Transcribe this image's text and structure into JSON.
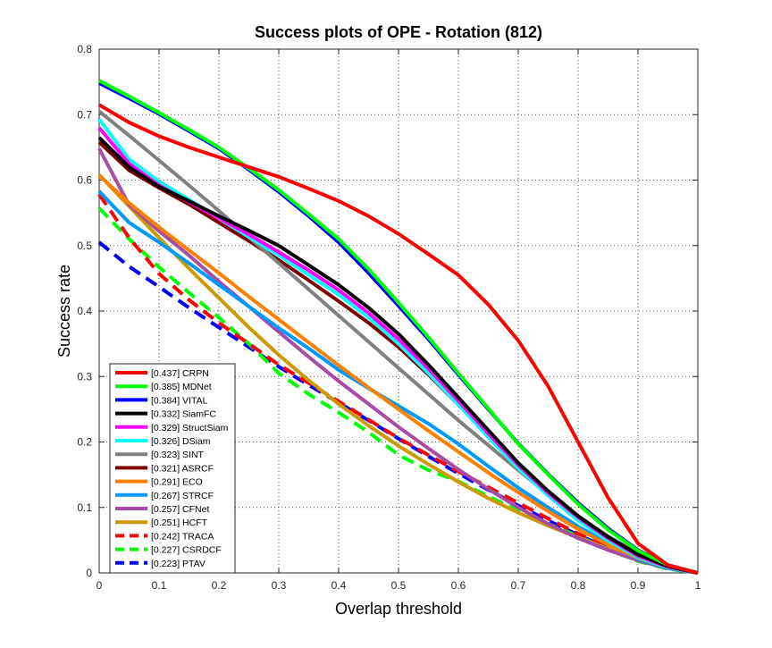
{
  "chart_data": {
    "type": "line",
    "title": "Success plots of OPE - Rotation (812)",
    "xlabel": "Overlap threshold",
    "ylabel": "Success rate",
    "xlim": [
      0,
      1
    ],
    "ylim": [
      0,
      0.8
    ],
    "xticks": [
      "0",
      "0.1",
      "0.2",
      "0.3",
      "0.4",
      "0.5",
      "0.6",
      "0.7",
      "0.8",
      "0.9",
      "1"
    ],
    "yticks": [
      "0",
      "0.1",
      "0.2",
      "0.3",
      "0.4",
      "0.5",
      "0.6",
      "0.7",
      "0.8"
    ],
    "grid": true,
    "legend_position": "bottom-left",
    "x": [
      0,
      0.05,
      0.1,
      0.15,
      0.2,
      0.25,
      0.3,
      0.35,
      0.4,
      0.45,
      0.5,
      0.55,
      0.6,
      0.65,
      0.7,
      0.75,
      0.8,
      0.85,
      0.9,
      0.95,
      1.0
    ],
    "series": [
      {
        "name": "[0.437] CRPN",
        "color": "#ff0000",
        "dash": false,
        "values": [
          0.715,
          0.688,
          0.667,
          0.65,
          0.635,
          0.62,
          0.605,
          0.587,
          0.568,
          0.545,
          0.518,
          0.487,
          0.455,
          0.41,
          0.355,
          0.285,
          0.2,
          0.115,
          0.045,
          0.012,
          0.0
        ]
      },
      {
        "name": "[0.385] MDNet",
        "color": "#00ff00",
        "dash": false,
        "values": [
          0.752,
          0.728,
          0.703,
          0.677,
          0.65,
          0.618,
          0.585,
          0.548,
          0.51,
          0.464,
          0.413,
          0.36,
          0.305,
          0.251,
          0.197,
          0.15,
          0.105,
          0.066,
          0.034,
          0.012,
          0.0
        ]
      },
      {
        "name": "[0.384] VITAL",
        "color": "#0000ff",
        "dash": false,
        "values": [
          0.748,
          0.725,
          0.701,
          0.675,
          0.648,
          0.616,
          0.582,
          0.545,
          0.505,
          0.458,
          0.408,
          0.357,
          0.303,
          0.25,
          0.198,
          0.151,
          0.107,
          0.068,
          0.035,
          0.012,
          0.0
        ]
      },
      {
        "name": "[0.332] SiamFC",
        "color": "#000000",
        "dash": false,
        "values": [
          0.665,
          0.62,
          0.59,
          0.568,
          0.545,
          0.523,
          0.5,
          0.47,
          0.44,
          0.405,
          0.365,
          0.318,
          0.268,
          0.218,
          0.168,
          0.125,
          0.087,
          0.055,
          0.028,
          0.01,
          0.0
        ]
      },
      {
        "name": "[0.329] StructSiam",
        "color": "#ff00ff",
        "dash": false,
        "values": [
          0.68,
          0.625,
          0.592,
          0.567,
          0.542,
          0.517,
          0.49,
          0.462,
          0.432,
          0.397,
          0.357,
          0.312,
          0.263,
          0.213,
          0.165,
          0.122,
          0.085,
          0.053,
          0.026,
          0.009,
          0.0
        ]
      },
      {
        "name": "[0.326] DSiam",
        "color": "#00ffff",
        "dash": false,
        "values": [
          0.693,
          0.632,
          0.598,
          0.57,
          0.542,
          0.513,
          0.485,
          0.455,
          0.425,
          0.39,
          0.35,
          0.305,
          0.257,
          0.207,
          0.16,
          0.118,
          0.08,
          0.049,
          0.024,
          0.008,
          0.0
        ]
      },
      {
        "name": "[0.323] SINT",
        "color": "#808080",
        "dash": false,
        "values": [
          0.705,
          0.668,
          0.63,
          0.592,
          0.553,
          0.513,
          0.473,
          0.433,
          0.393,
          0.353,
          0.313,
          0.273,
          0.233,
          0.195,
          0.157,
          0.12,
          0.086,
          0.056,
          0.03,
          0.011,
          0.0
        ]
      },
      {
        "name": "[0.321] ASRCF",
        "color": "#800000",
        "dash": false,
        "values": [
          0.658,
          0.615,
          0.588,
          0.563,
          0.535,
          0.507,
          0.478,
          0.447,
          0.415,
          0.382,
          0.345,
          0.303,
          0.257,
          0.21,
          0.163,
          0.121,
          0.083,
          0.051,
          0.025,
          0.009,
          0.0
        ]
      },
      {
        "name": "[0.291] ECO",
        "color": "#ff8000",
        "dash": false,
        "values": [
          0.607,
          0.565,
          0.528,
          0.493,
          0.458,
          0.422,
          0.387,
          0.352,
          0.317,
          0.283,
          0.25,
          0.217,
          0.185,
          0.153,
          0.123,
          0.094,
          0.067,
          0.043,
          0.023,
          0.008,
          0.0
        ]
      },
      {
        "name": "[0.267] STRCF",
        "color": "#0099ff",
        "dash": false,
        "values": [
          0.583,
          0.535,
          0.505,
          0.473,
          0.44,
          0.407,
          0.374,
          0.343,
          0.31,
          0.282,
          0.255,
          0.228,
          0.197,
          0.163,
          0.13,
          0.1,
          0.071,
          0.045,
          0.021,
          0.007,
          0.0
        ]
      },
      {
        "name": "[0.257] CFNet",
        "color": "#a64ca6",
        "dash": false,
        "values": [
          0.648,
          0.562,
          0.522,
          0.485,
          0.445,
          0.407,
          0.368,
          0.33,
          0.293,
          0.258,
          0.223,
          0.19,
          0.158,
          0.128,
          0.1,
          0.075,
          0.053,
          0.035,
          0.019,
          0.007,
          0.0
        ]
      },
      {
        "name": "[0.251] HCFT",
        "color": "#cc9900",
        "dash": false,
        "values": [
          0.608,
          0.56,
          0.512,
          0.465,
          0.42,
          0.375,
          0.333,
          0.294,
          0.258,
          0.225,
          0.194,
          0.166,
          0.139,
          0.114,
          0.092,
          0.072,
          0.054,
          0.037,
          0.022,
          0.008,
          0.0
        ]
      },
      {
        "name": "[0.242] TRACA",
        "color": "#ff0000",
        "dash": true,
        "values": [
          0.578,
          0.512,
          0.457,
          0.417,
          0.382,
          0.35,
          0.318,
          0.29,
          0.262,
          0.234,
          0.206,
          0.18,
          0.155,
          0.131,
          0.107,
          0.083,
          0.06,
          0.039,
          0.02,
          0.007,
          0.0
        ]
      },
      {
        "name": "[0.227] CSRDCF",
        "color": "#00ff00",
        "dash": true,
        "values": [
          0.557,
          0.51,
          0.467,
          0.428,
          0.39,
          0.35,
          0.305,
          0.273,
          0.245,
          0.215,
          0.18,
          0.157,
          0.14,
          0.117,
          0.095,
          0.075,
          0.056,
          0.036,
          0.018,
          0.006,
          0.0
        ]
      },
      {
        "name": "[0.223] PTAV",
        "color": "#0000ff",
        "dash": true,
        "values": [
          0.505,
          0.468,
          0.437,
          0.405,
          0.375,
          0.345,
          0.315,
          0.287,
          0.26,
          0.233,
          0.205,
          0.178,
          0.152,
          0.127,
          0.103,
          0.08,
          0.058,
          0.038,
          0.02,
          0.007,
          0.0
        ]
      }
    ]
  }
}
